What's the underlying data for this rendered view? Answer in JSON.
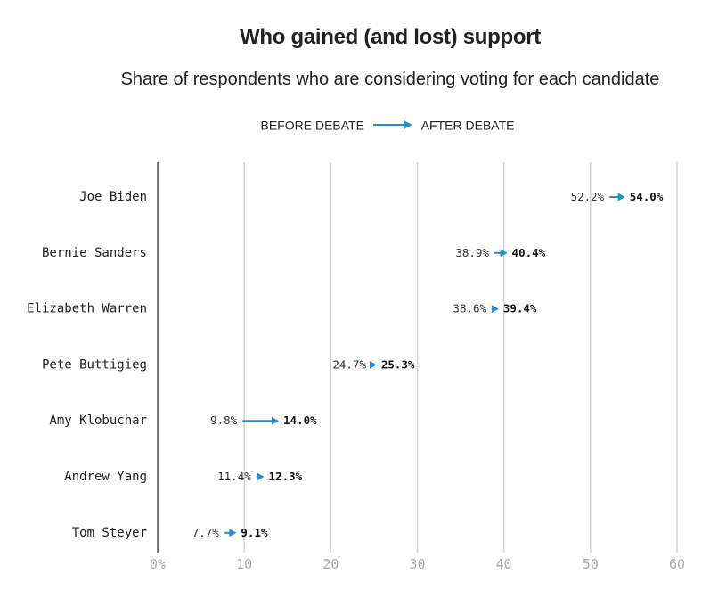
{
  "title": "Who gained (and lost) support",
  "subtitle": "Share of respondents who are considering voting for each candidate",
  "legend": {
    "before_label": "BEFORE DEBATE",
    "after_label": "AFTER DEBATE"
  },
  "colors": {
    "arrow": "#1f8fd6",
    "grid": "#d3d3d3",
    "axis": "#222222",
    "tick_label": "#aaaaaa"
  },
  "chart_data": {
    "type": "dumbbell-arrow",
    "categories": [
      "Joe Biden",
      "Bernie Sanders",
      "Elizabeth Warren",
      "Pete Buttigieg",
      "Amy Klobuchar",
      "Andrew Yang",
      "Tom Steyer"
    ],
    "series": [
      {
        "name": "BEFORE DEBATE",
        "values": [
          52.2,
          38.9,
          38.6,
          24.7,
          9.8,
          11.4,
          7.7
        ]
      },
      {
        "name": "AFTER DEBATE",
        "values": [
          54.0,
          40.4,
          39.4,
          25.3,
          14.0,
          12.3,
          9.1
        ]
      }
    ],
    "before_labels": [
      "52.2%",
      "38.9%",
      "38.6%",
      "24.7%",
      "9.8%",
      "11.4%",
      "7.7%"
    ],
    "after_labels": [
      "54.0%",
      "40.4%",
      "39.4%",
      "25.3%",
      "14.0%",
      "12.3%",
      "9.1%"
    ],
    "xlim": [
      0,
      60
    ],
    "xticks": [
      0,
      10,
      20,
      30,
      40,
      50,
      60
    ],
    "xtick_labels": [
      "0%",
      "10",
      "20",
      "30",
      "40",
      "50",
      "60"
    ],
    "grid": true
  }
}
